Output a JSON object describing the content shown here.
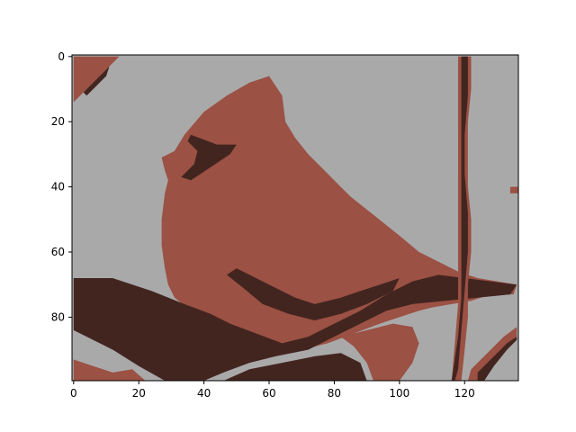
{
  "colors": {
    "background": "#a9a9aa",
    "body": "#9b5143",
    "dark": "#432520",
    "axes_edge": "#000000"
  },
  "chart_data": {
    "type": "heatmap",
    "title": "",
    "xlabel": "",
    "ylabel": "",
    "xlim": [
      -0.5,
      136.5
    ],
    "ylim": [
      99.5,
      -0.5
    ],
    "grid": false,
    "image_shape": [
      100,
      137
    ],
    "levels": [
      "background",
      "body",
      "dark"
    ],
    "x_ticks": [
      0,
      20,
      40,
      60,
      80,
      100,
      120
    ],
    "x_tick_labels": [
      "0",
      "20",
      "40",
      "60",
      "80",
      "100",
      "120"
    ],
    "y_ticks": [
      0,
      20,
      40,
      60,
      80
    ],
    "y_tick_labels": [
      "0",
      "20",
      "40",
      "60",
      "80"
    ],
    "regions": [
      {
        "level": "body",
        "points": [
          [
            54,
            8
          ],
          [
            60,
            6
          ],
          [
            64,
            12
          ],
          [
            65,
            20
          ],
          [
            68,
            25
          ],
          [
            72,
            30
          ],
          [
            76,
            34
          ],
          [
            80,
            38
          ],
          [
            85,
            43
          ],
          [
            90,
            47
          ],
          [
            95,
            51
          ],
          [
            100,
            55
          ],
          [
            106,
            60
          ],
          [
            112,
            63
          ],
          [
            118,
            66
          ],
          [
            124,
            68
          ],
          [
            130,
            69
          ],
          [
            136,
            70
          ],
          [
            135,
            73
          ],
          [
            128,
            73
          ],
          [
            122,
            75
          ],
          [
            116,
            76
          ],
          [
            110,
            77
          ],
          [
            106,
            78
          ],
          [
            100,
            80
          ],
          [
            94,
            82
          ],
          [
            86,
            85
          ],
          [
            78,
            88
          ],
          [
            70,
            90
          ],
          [
            62,
            88
          ],
          [
            56,
            86
          ],
          [
            49,
            83
          ],
          [
            43,
            81
          ],
          [
            36,
            78
          ],
          [
            31,
            74
          ],
          [
            29,
            70
          ],
          [
            28,
            65
          ],
          [
            27,
            58
          ],
          [
            27,
            50
          ],
          [
            28,
            42
          ],
          [
            29,
            38
          ],
          [
            28,
            35
          ],
          [
            27,
            31
          ],
          [
            31,
            29
          ],
          [
            34,
            24
          ],
          [
            40,
            17
          ],
          [
            47,
            12
          ]
        ]
      },
      {
        "level": "dark",
        "points": [
          [
            36,
            24
          ],
          [
            44,
            27
          ],
          [
            50,
            27
          ],
          [
            48,
            30
          ],
          [
            42,
            34
          ],
          [
            36,
            38
          ],
          [
            33,
            37
          ],
          [
            37,
            33
          ],
          [
            38,
            29
          ],
          [
            35,
            26
          ]
        ]
      },
      {
        "level": "dark",
        "points": [
          [
            0,
            68
          ],
          [
            12,
            68
          ],
          [
            24,
            72
          ],
          [
            34,
            76
          ],
          [
            42,
            79
          ],
          [
            48,
            82
          ],
          [
            56,
            85
          ],
          [
            64,
            88
          ],
          [
            72,
            86
          ],
          [
            80,
            82
          ],
          [
            88,
            78
          ],
          [
            96,
            73
          ],
          [
            104,
            69
          ],
          [
            112,
            67
          ],
          [
            120,
            68
          ],
          [
            128,
            69
          ],
          [
            136,
            70
          ],
          [
            134,
            73
          ],
          [
            124,
            74
          ],
          [
            114,
            75
          ],
          [
            104,
            76
          ],
          [
            96,
            78
          ],
          [
            88,
            82
          ],
          [
            80,
            86
          ],
          [
            72,
            90
          ],
          [
            62,
            92
          ],
          [
            54,
            94
          ],
          [
            46,
            97
          ],
          [
            40,
            99.5
          ],
          [
            28,
            99.5
          ],
          [
            20,
            95
          ],
          [
            12,
            90
          ],
          [
            4,
            86
          ],
          [
            0,
            84
          ]
        ]
      },
      {
        "level": "dark",
        "points": [
          [
            50,
            65
          ],
          [
            60,
            70
          ],
          [
            68,
            74
          ],
          [
            74,
            76
          ],
          [
            82,
            74
          ],
          [
            88,
            72
          ],
          [
            94,
            70
          ],
          [
            100,
            68
          ],
          [
            98,
            72
          ],
          [
            90,
            76
          ],
          [
            82,
            79
          ],
          [
            74,
            81
          ],
          [
            66,
            79
          ],
          [
            58,
            76
          ],
          [
            52,
            71
          ],
          [
            47,
            67
          ]
        ]
      },
      {
        "level": "dark",
        "points": [
          [
            46,
            99.5
          ],
          [
            54,
            96
          ],
          [
            64,
            94
          ],
          [
            74,
            92
          ],
          [
            82,
            91
          ],
          [
            88,
            94
          ],
          [
            90,
            99.5
          ]
        ]
      },
      {
        "level": "body",
        "points": [
          [
            82,
            86
          ],
          [
            90,
            84
          ],
          [
            98,
            82
          ],
          [
            104,
            83
          ],
          [
            106,
            88
          ],
          [
            104,
            94
          ],
          [
            100,
            99.5
          ],
          [
            92,
            99.5
          ],
          [
            90,
            94
          ],
          [
            86,
            89
          ]
        ]
      },
      {
        "level": "body",
        "points": [
          [
            0,
            0
          ],
          [
            14,
            0
          ],
          [
            10,
            4
          ],
          [
            6,
            8
          ],
          [
            2,
            12
          ],
          [
            0,
            14
          ]
        ]
      },
      {
        "level": "dark",
        "points": [
          [
            3,
            11
          ],
          [
            6,
            8
          ],
          [
            9,
            5
          ],
          [
            11,
            3
          ],
          [
            10,
            6
          ],
          [
            7,
            9
          ],
          [
            4,
            12
          ]
        ]
      },
      {
        "level": "body",
        "points": [
          [
            118,
            0
          ],
          [
            122,
            0
          ],
          [
            122,
            10
          ],
          [
            121,
            20
          ],
          [
            121,
            30
          ],
          [
            121,
            40
          ],
          [
            122,
            50
          ],
          [
            122,
            60
          ],
          [
            121,
            70
          ],
          [
            121,
            80
          ],
          [
            120,
            90
          ],
          [
            119,
            99.5
          ],
          [
            116,
            99.5
          ],
          [
            117,
            88
          ],
          [
            118,
            76
          ],
          [
            118,
            64
          ],
          [
            118,
            52
          ],
          [
            118,
            40
          ],
          [
            118,
            28
          ],
          [
            118,
            16
          ],
          [
            118,
            6
          ]
        ]
      },
      {
        "level": "dark",
        "points": [
          [
            119,
            0
          ],
          [
            121,
            0
          ],
          [
            121,
            12
          ],
          [
            120,
            24
          ],
          [
            120,
            36
          ],
          [
            121,
            48
          ],
          [
            121,
            60
          ],
          [
            120,
            72
          ],
          [
            119,
            84
          ],
          [
            118,
            96
          ],
          [
            117,
            99.5
          ],
          [
            116,
            99.5
          ],
          [
            118,
            86
          ],
          [
            119,
            74
          ],
          [
            119,
            60
          ],
          [
            119,
            46
          ],
          [
            119,
            32
          ],
          [
            119,
            18
          ]
        ]
      },
      {
        "level": "body",
        "points": [
          [
            122,
            96
          ],
          [
            128,
            90
          ],
          [
            132,
            86
          ],
          [
            136,
            83
          ],
          [
            136,
            86
          ],
          [
            132,
            90
          ],
          [
            128,
            94
          ],
          [
            125,
            98
          ],
          [
            124,
            99.5
          ],
          [
            121,
            99.5
          ]
        ]
      },
      {
        "level": "dark",
        "points": [
          [
            124,
            97
          ],
          [
            129,
            92
          ],
          [
            133,
            88
          ],
          [
            136,
            86
          ],
          [
            136,
            87
          ],
          [
            133,
            90
          ],
          [
            129,
            95
          ],
          [
            126,
            99.5
          ],
          [
            124,
            99.5
          ]
        ]
      },
      {
        "level": "body",
        "points": [
          [
            0,
            93
          ],
          [
            6,
            95
          ],
          [
            12,
            97
          ],
          [
            18,
            96
          ],
          [
            22,
            99.5
          ],
          [
            0,
            99.5
          ]
        ]
      },
      {
        "level": "body",
        "points": [
          [
            134,
            40
          ],
          [
            136.5,
            40
          ],
          [
            136.5,
            42
          ],
          [
            134,
            42
          ]
        ]
      }
    ]
  }
}
